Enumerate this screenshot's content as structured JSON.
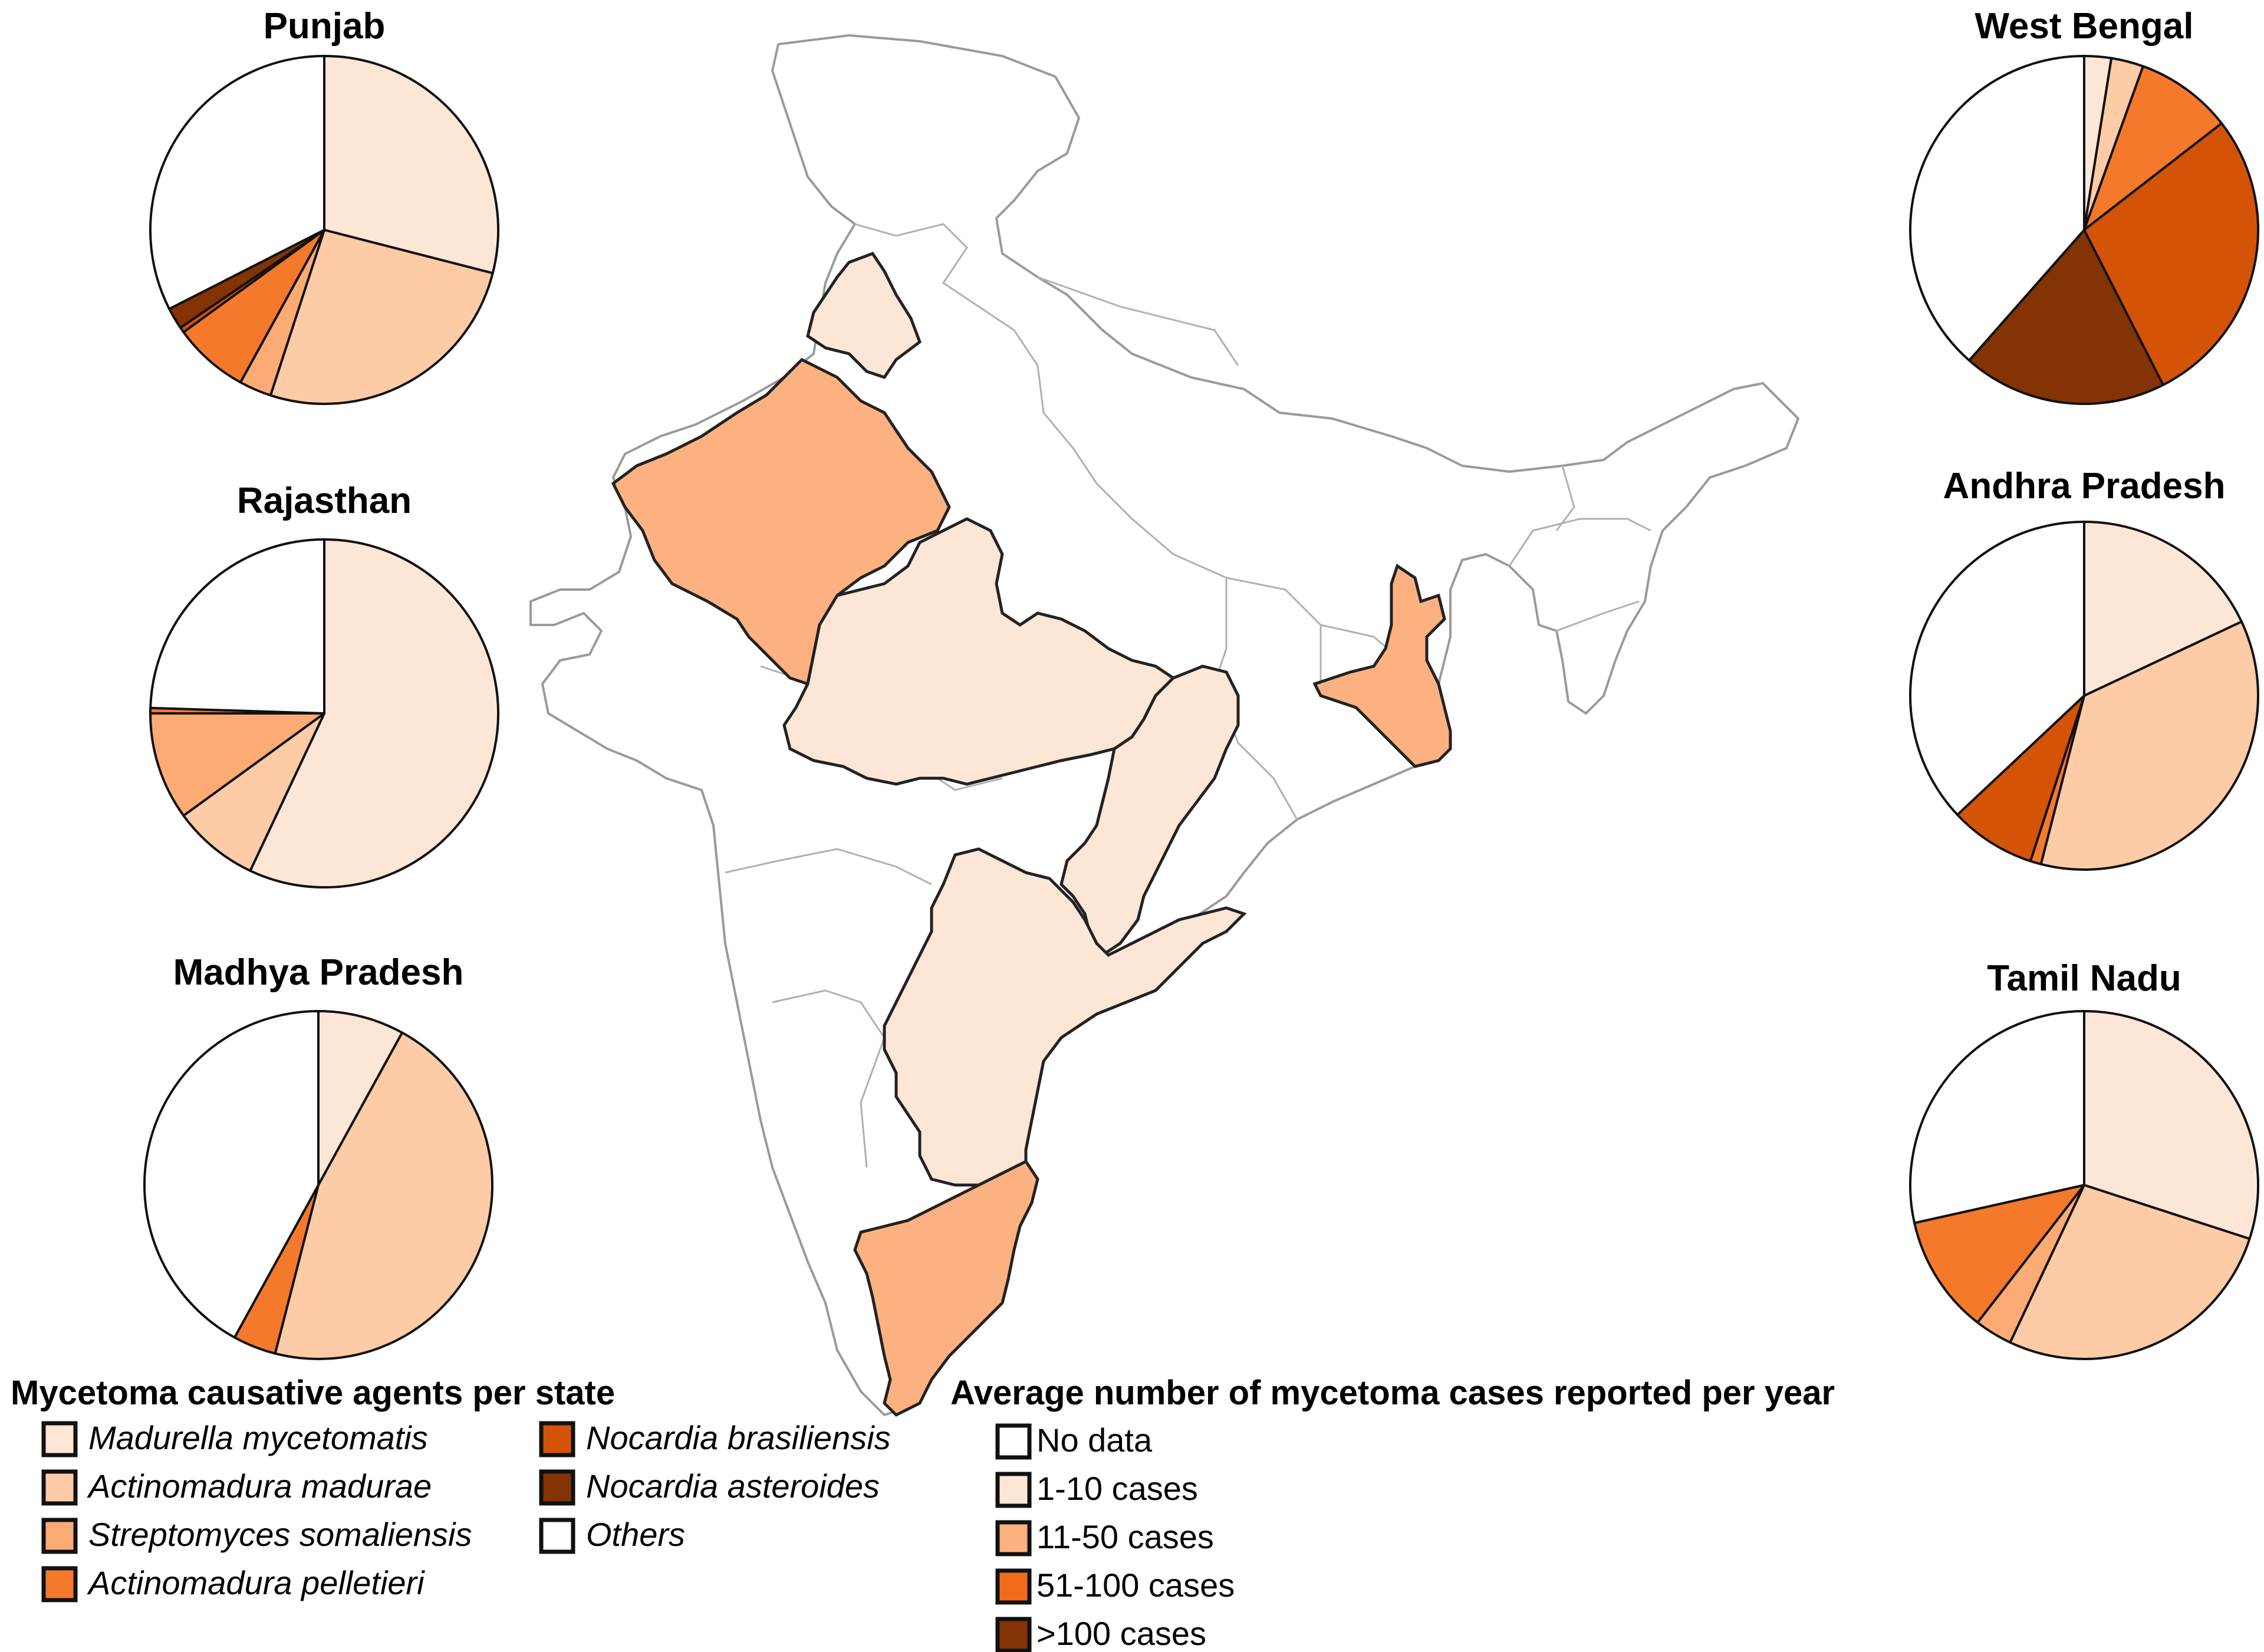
{
  "colors": {
    "no_data": "#ffffff",
    "cases_1_10": "#fee6d6",
    "cases_11_50": "#fdb180",
    "cases_51_100": "#f26b1d",
    "cases_over_100": "#833304"
  },
  "agents": [
    {
      "key": "madurella",
      "label": "Madurella mycetomatis",
      "color": "#fee6d6"
    },
    {
      "key": "actino_madurae",
      "label": "Actinomadura madurae",
      "color": "#fdcba5"
    },
    {
      "key": "strepto",
      "label": "Streptomyces somaliensis",
      "color": "#fdab74"
    },
    {
      "key": "actino_pelletieri",
      "label": "Actinomadura pelletieri",
      "color": "#f5792a"
    },
    {
      "key": "nocardia_bras",
      "label": "Nocardia brasiliensis",
      "color": "#d55306"
    },
    {
      "key": "nocardia_ast",
      "label": "Nocardia asteroides",
      "color": "#833304"
    },
    {
      "key": "others",
      "label": "Others",
      "color": "#ffffff"
    }
  ],
  "pies": [
    {
      "state": "Punjab",
      "side": "left",
      "values": {
        "madurella": 29,
        "actino_madurae": 26,
        "strepto": 3,
        "actino_pelletieri": 7,
        "nocardia_bras": 0.5,
        "nocardia_ast": 2,
        "others": 32.5
      }
    },
    {
      "state": "Rajasthan",
      "side": "left",
      "values": {
        "madurella": 57,
        "actino_madurae": 8,
        "strepto": 10,
        "actino_pelletieri": 0.5,
        "nocardia_bras": 0,
        "nocardia_ast": 0,
        "others": 24.5
      }
    },
    {
      "state": "Madhya Pradesh",
      "side": "left",
      "values": {
        "madurella": 8,
        "actino_madurae": 46,
        "strepto": 0,
        "actino_pelletieri": 4,
        "nocardia_bras": 0,
        "nocardia_ast": 0,
        "others": 42
      }
    },
    {
      "state": "West Bengal",
      "side": "right",
      "values": {
        "madurella": 2.5,
        "actino_madurae": 3,
        "strepto": 0,
        "actino_pelletieri": 9,
        "nocardia_bras": 28,
        "nocardia_ast": 19,
        "others": 38.5
      }
    },
    {
      "state": "Andhra Pradesh",
      "side": "right",
      "values": {
        "madurella": 18,
        "actino_madurae": 36,
        "strepto": 0,
        "actino_pelletieri": 1,
        "nocardia_bras": 8,
        "nocardia_ast": 0,
        "others": 37
      }
    },
    {
      "state": "Tamil Nadu",
      "side": "right",
      "values": {
        "madurella": 30,
        "actino_madurae": 27,
        "strepto": 3.5,
        "actino_pelletieri": 11,
        "nocardia_bras": 0,
        "nocardia_ast": 0,
        "others": 28.5
      }
    }
  ],
  "legend_agents": {
    "title": "Mycetoma causative agents per state"
  },
  "legend_cases": {
    "title": "Average number of mycetoma cases reported per year",
    "items": [
      {
        "label": "No data",
        "color": "#ffffff"
      },
      {
        "label": "1-10 cases",
        "color": "#fee6d6"
      },
      {
        "label": "11-50 cases",
        "color": "#fdb180"
      },
      {
        "label": "51-100 cases",
        "color": "#f26b1d"
      },
      {
        "label": ">100 cases",
        "color": "#833304"
      }
    ]
  },
  "map_states": [
    {
      "name": "Punjab",
      "category": "cases_1_10"
    },
    {
      "name": "Rajasthan",
      "category": "cases_11_50"
    },
    {
      "name": "Madhya Pradesh",
      "category": "cases_1_10"
    },
    {
      "name": "Chhattisgarh",
      "category": "cases_1_10"
    },
    {
      "name": "West Bengal",
      "category": "cases_11_50"
    },
    {
      "name": "Andhra Pradesh",
      "category": "cases_1_10"
    },
    {
      "name": "Tamil Nadu",
      "category": "cases_11_50"
    }
  ]
}
